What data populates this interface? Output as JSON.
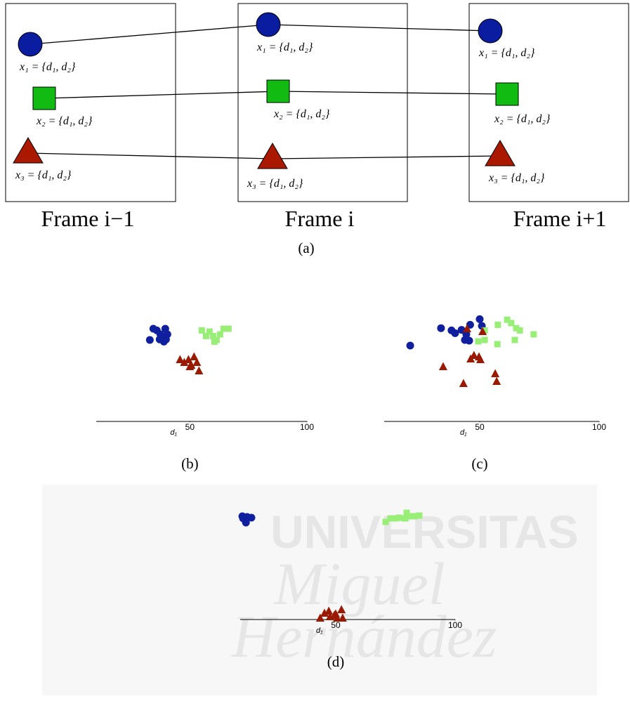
{
  "watermark": [
    "UNIVERSITAS",
    "Miguel",
    "Hernández"
  ],
  "diagram": {
    "caption": "(a)",
    "frames": [
      {
        "label": "Frame i−1",
        "objects": [
          {
            "label": "x₁ = {d₁, d₂}"
          },
          {
            "label": "x₂ = {d₁, d₂}"
          },
          {
            "label": "x₃ = {d₁, d₂}"
          }
        ]
      },
      {
        "label": "Frame i",
        "objects": [
          {
            "label": "x₁ = {d₁, d₂}"
          },
          {
            "label": "x₂ = {d₁, d₂}"
          },
          {
            "label": "x₃ = {d₁, d₂}"
          }
        ]
      },
      {
        "label": "Frame i+1",
        "objects": [
          {
            "label": "x₁ = {d₁, d₂}"
          },
          {
            "label": "x₂ = {d₁, d₂}"
          },
          {
            "label": "x₃ = {d₁, d₂}"
          }
        ]
      }
    ]
  },
  "chart_data": [
    {
      "type": "scatter",
      "caption": "(b)",
      "xlabel": "d₁",
      "xlim": [
        10,
        100
      ],
      "xticks": [
        50,
        100
      ],
      "ylim": [
        0,
        100
      ],
      "series": [
        {
          "marker": "circle",
          "color": "#0f1f9e",
          "x": [
            32.9,
            34.4,
            35.9,
            37.4,
            38.0,
            39.5,
            40.4,
            38.9,
            37.1,
            39.8
          ],
          "values": [
            72.5,
            82.5,
            81,
            77.5,
            75,
            82.5,
            77.5,
            71,
            73,
            73
          ]
        },
        {
          "marker": "square",
          "color": "#99ee77",
          "x": [
            55.1,
            58.4,
            59.9,
            61.4,
            62.9,
            64.4,
            66.5,
            56.9,
            60.5
          ],
          "values": [
            81,
            80,
            76,
            72.5,
            77.5,
            82.5,
            82.5,
            76,
            71
          ]
        },
        {
          "marker": "triangle",
          "color": "#991a00",
          "x": [
            45.8,
            47.6,
            49.4,
            50.6,
            51.8,
            53.0,
            53.9,
            50.0
          ],
          "values": [
            55,
            52.5,
            55,
            50,
            57.5,
            52.5,
            45,
            48.75
          ]
        }
      ]
    },
    {
      "type": "scatter",
      "caption": "(c)",
      "xlabel": "d₁",
      "xlim": [
        10,
        100
      ],
      "xticks": [
        50,
        100
      ],
      "ylim": [
        0,
        100
      ],
      "series": [
        {
          "marker": "circle",
          "color": "#0f1f9e",
          "x": [
            20.9,
            33.8,
            38.2,
            39.7,
            42.4,
            43.8,
            45.6,
            46.0,
            50.0,
            50.9,
            44.4
          ],
          "values": [
            67.5,
            83,
            81,
            78.5,
            81.5,
            72.5,
            71.9,
            86,
            91,
            85,
            77.5
          ]
        },
        {
          "marker": "square",
          "color": "#99ee77",
          "x": [
            57.6,
            61.5,
            63.2,
            65.3,
            66.8,
            72.6,
            64.7,
            57.4,
            52.1,
            49.4,
            52.1
          ],
          "values": [
            86,
            90.5,
            87.5,
            83,
            81,
            77.5,
            72.5,
            68.75,
            72.5,
            71.25,
            81
          ]
        },
        {
          "marker": "triangle",
          "color": "#991a00",
          "x": [
            44.7,
            51.2,
            34.7,
            43.2,
            46.2,
            47.6,
            50.3,
            56.5,
            57.1,
            49.7
          ],
          "values": [
            82.5,
            80,
            48.75,
            33.75,
            55.6,
            58.75,
            55,
            42.5,
            35.6,
            57.5
          ]
        }
      ]
    },
    {
      "type": "scatter",
      "caption": "(d)",
      "xlabel": "d₁",
      "xlim": [
        10,
        100
      ],
      "xticks": [
        50,
        100
      ],
      "ylim": [
        0,
        100
      ],
      "series": [
        {
          "marker": "circle",
          "color": "#0f1f9e",
          "x": [
            10.9,
            12.4,
            12.9,
            14.7,
            12.4,
            11.2
          ],
          "values": [
            91.9,
            88.75,
            91.25,
            90.6,
            86.25,
            90
          ]
        },
        {
          "marker": "square",
          "color": "#99ee77",
          "x": [
            70.9,
            72.9,
            75.0,
            76.5,
            79.7,
            81.2,
            82.9,
            85.0,
            79.1
          ],
          "values": [
            86.9,
            90,
            90,
            90.6,
            95,
            91.9,
            91.9,
            92.5,
            90
          ]
        },
        {
          "marker": "triangle",
          "color": "#991a00",
          "x": [
            43.5,
            45.3,
            47.1,
            49.4,
            50.6,
            52.4,
            52.9,
            50,
            47.6
          ],
          "values": [
            1.25,
            5.6,
            7.5,
            3.75,
            1.25,
            8.75,
            1.25,
            5,
            2.5
          ]
        }
      ]
    }
  ]
}
